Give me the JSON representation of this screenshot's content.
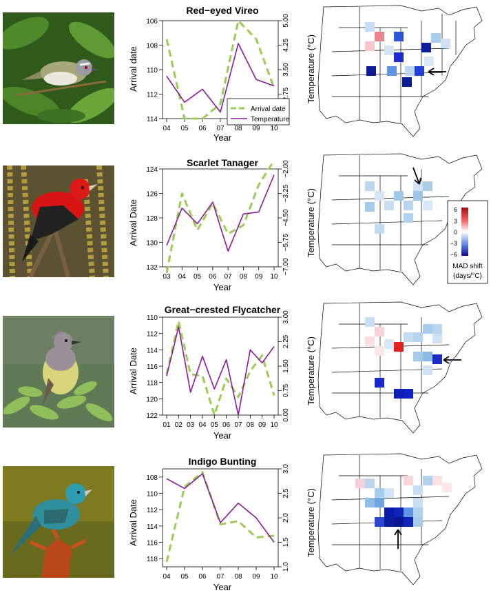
{
  "figure": {
    "arrival_axis_label_vireo": "Arrival date",
    "arrival_axis_label": "Arrival Date",
    "temperature_axis_label": "Temperature (°C)",
    "year_axis_label": "Year",
    "legend": {
      "arrival": "Arrival date",
      "temperature": "Temperature"
    },
    "colorbar": {
      "ticks": [
        "6",
        "3",
        "0",
        "−3",
        "−6"
      ],
      "title_line1": "MAD shift",
      "title_line2": "(days/°C)"
    },
    "colors": {
      "arrival": "#99cc55",
      "temperature": "#8a1a9b"
    }
  },
  "chart_data": [
    {
      "type": "line",
      "title": "Red−eyed Vireo",
      "x": [
        "04",
        "05",
        "06",
        "07",
        "08",
        "09",
        "10"
      ],
      "xlabel": "Year",
      "series": [
        {
          "name": "Arrival date",
          "axis": "left",
          "values": [
            107.5,
            114.0,
            114.0,
            112.8,
            106.0,
            107.5,
            111.5
          ]
        },
        {
          "name": "Temperature",
          "axis": "right",
          "values": [
            3.3,
            2.5,
            2.9,
            2.2,
            4.3,
            3.2,
            3.0
          ]
        }
      ],
      "left_axis": {
        "label": "Arrival date",
        "ticks": [
          106,
          108,
          110,
          112,
          114
        ],
        "ylim": [
          106,
          114
        ],
        "inverted": true
      },
      "right_axis": {
        "label": "Temperature (°C)",
        "ticks": [
          "2.00",
          "2.75",
          "3.50",
          "4.25",
          "5.00"
        ],
        "ylim": [
          2.0,
          5.0
        ]
      },
      "legend": "bottom-right"
    },
    {
      "type": "line",
      "title": "Scarlet Tanager",
      "x": [
        "03",
        "04",
        "05",
        "06",
        "07",
        "08",
        "09",
        "10"
      ],
      "xlabel": "Year",
      "series": [
        {
          "name": "Arrival date",
          "axis": "left",
          "values": [
            132.5,
            126.0,
            129.0,
            126.8,
            129.3,
            128.6,
            125.3,
            123.3
          ]
        },
        {
          "name": "Temperature",
          "axis": "right",
          "values": [
            -5.9,
            -4.0,
            -4.8,
            -3.7,
            -6.2,
            -4.3,
            -4.2,
            -2.3
          ]
        }
      ],
      "left_axis": {
        "label": "Arrival Date",
        "ticks": [
          124,
          126,
          128,
          130,
          132
        ],
        "ylim": [
          124,
          132
        ],
        "inverted": true
      },
      "right_axis": {
        "label": "Temperature (°C)",
        "ticks": [
          "−7.00",
          "−5.75",
          "−4.50",
          "−3.25",
          "−2.00"
        ],
        "ylim": [
          -7.0,
          -2.0
        ]
      }
    },
    {
      "type": "line",
      "title": "Great−crested Flycatcher",
      "x": [
        "01",
        "02",
        "03",
        "04",
        "05",
        "06",
        "07",
        "08",
        "09",
        "10"
      ],
      "xlabel": "Year",
      "series": [
        {
          "name": "Arrival date",
          "axis": "left",
          "values": [
            117.0,
            110.5,
            117.0,
            117.2,
            122.0,
            117.5,
            119.8,
            116.6,
            114.7,
            119.6
          ]
        },
        {
          "name": "Temperature",
          "axis": "right",
          "values": [
            1.2,
            2.7,
            0.7,
            1.8,
            0.8,
            1.7,
            0.0,
            2.0,
            1.6,
            2.1
          ]
        }
      ],
      "left_axis": {
        "label": "Arrival Date",
        "ticks": [
          110,
          112,
          114,
          116,
          118,
          120,
          122
        ],
        "ylim": [
          110,
          122
        ],
        "inverted": true
      },
      "right_axis": {
        "label": "Temperature (°C)",
        "ticks": [
          "0.00",
          "0.75",
          "1.50",
          "2.25",
          "3.00"
        ],
        "ylim": [
          0.0,
          3.0
        ]
      }
    },
    {
      "type": "line",
      "title": "Indigo Bunting",
      "x": [
        "04",
        "05",
        "06",
        "07",
        "08",
        "09",
        "10"
      ],
      "xlabel": "Year",
      "series": [
        {
          "name": "Arrival date",
          "axis": "left",
          "values": [
            118.4,
            109.2,
            107.4,
            113.8,
            113.4,
            115.4,
            115.2
          ]
        },
        {
          "name": "Temperature",
          "axis": "right",
          "values": [
            2.8,
            2.6,
            2.9,
            1.9,
            2.3,
            2.0,
            1.5
          ]
        }
      ],
      "left_axis": {
        "label": "Arrival Date",
        "ticks": [
          108,
          110,
          112,
          114,
          116,
          118
        ],
        "ylim": [
          107,
          119
        ],
        "inverted": true
      },
      "right_axis": {
        "label": "Temperature (°C)",
        "ticks": [
          "1.0",
          "1.5",
          "2.0",
          "2.5",
          "3.0"
        ],
        "ylim": [
          1.0,
          3.0
        ]
      }
    }
  ]
}
